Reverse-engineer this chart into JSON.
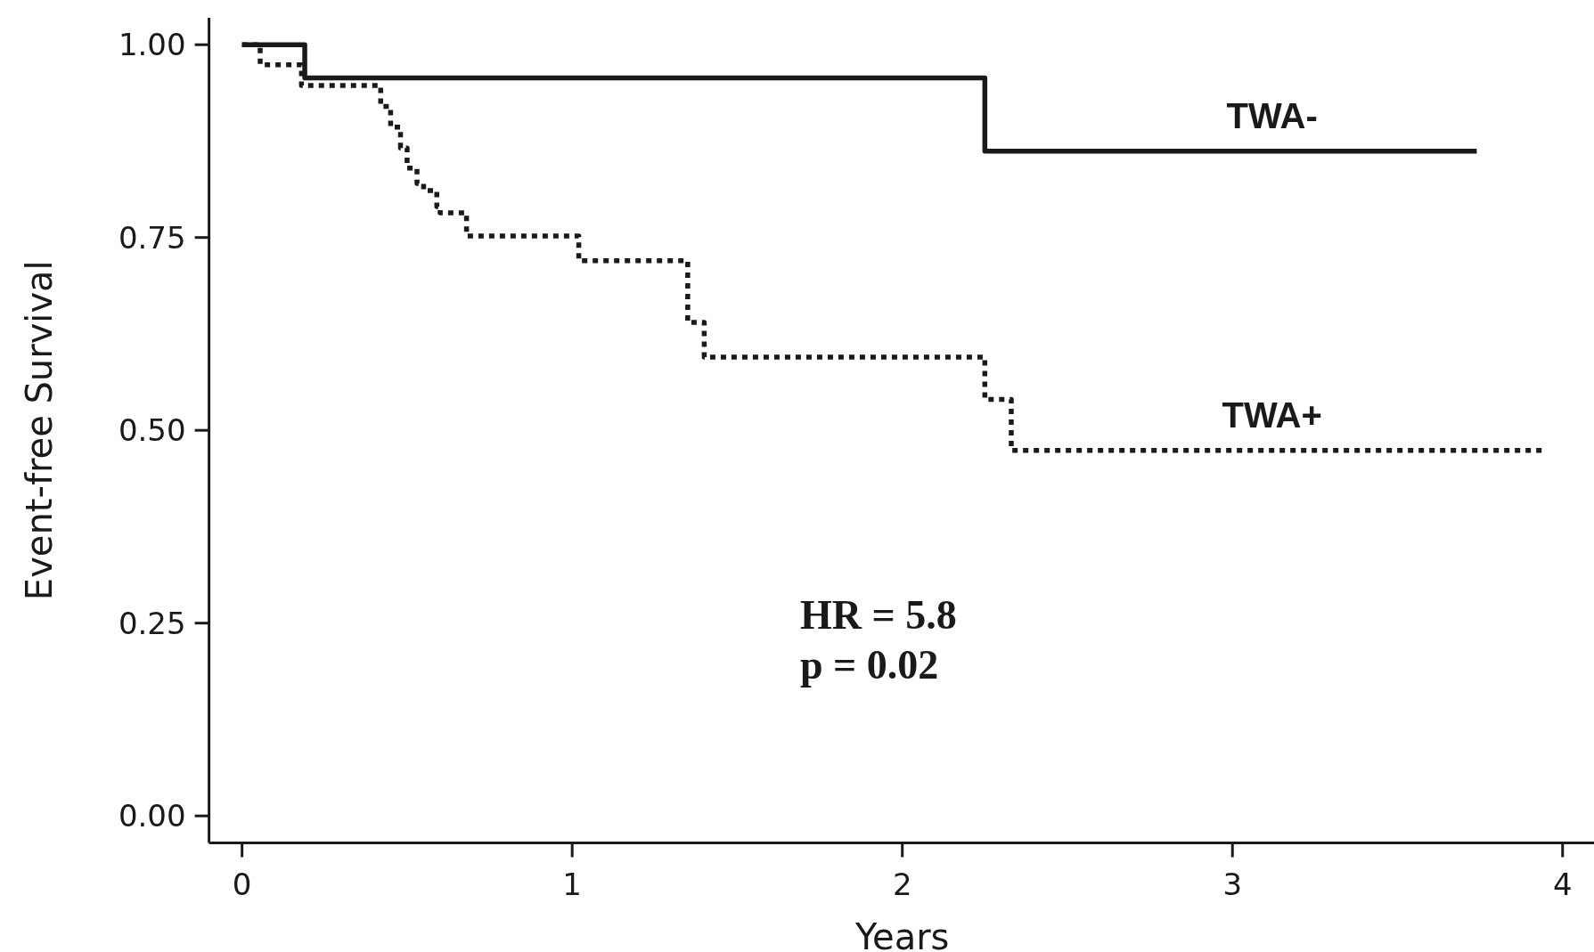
{
  "chart_data": {
    "type": "step",
    "xlabel": "Years",
    "ylabel": "Event-free Survival",
    "xlim": [
      -0.1,
      4.1
    ],
    "xticks": [
      0,
      1,
      2,
      3,
      4
    ],
    "ylim": [
      -0.035,
      1.035
    ],
    "yticks": [
      {
        "value": 0,
        "label": "0.00"
      },
      {
        "value": 0.25,
        "label": "0.25"
      },
      {
        "value": 0.5,
        "label": "0.50"
      },
      {
        "value": 0.75,
        "label": "0.75"
      },
      {
        "value": 1,
        "label": "1.00"
      }
    ],
    "grid": false,
    "legend": false,
    "series": [
      {
        "name": "TWA-",
        "color": "#1a1a1a",
        "line_style": "solid",
        "x": [
          0,
          0.19,
          2.25,
          3.74
        ],
        "values": [
          1,
          0.957,
          0.862,
          0.862
        ]
      },
      {
        "name": "TWA+",
        "color": "#1a1a1a",
        "line_style": "dotted",
        "x": [
          0,
          0.055,
          0.18,
          0.42,
          0.45,
          0.48,
          0.5,
          0.53,
          0.55,
          0.59,
          0.6,
          0.68,
          1.02,
          1.35,
          1.4,
          2.25,
          2.33,
          3.94
        ],
        "values": [
          1,
          0.974,
          0.947,
          0.92,
          0.893,
          0.866,
          0.84,
          0.82,
          0.811,
          0.79,
          0.782,
          0.752,
          0.72,
          0.64,
          0.595,
          0.54,
          0.474,
          0.474
        ]
      }
    ],
    "annotations": [
      "HR = 5.8",
      "p = 0.02"
    ]
  }
}
